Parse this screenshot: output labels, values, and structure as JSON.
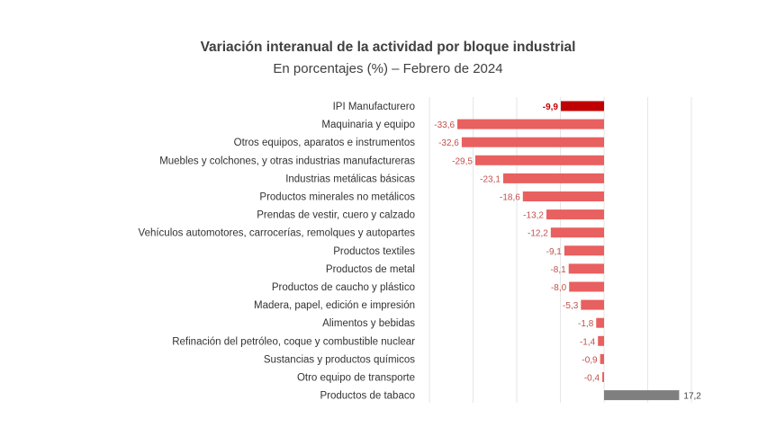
{
  "chart_data": {
    "type": "bar",
    "orientation": "horizontal",
    "title": "Variación interanual de la actividad por bloque industrial",
    "subtitle": "En porcentajes (%) – Febrero de 2024",
    "xlim": [
      -40,
      20
    ],
    "grid": true,
    "categories": [
      "IPI Manufacturero",
      "Maquinaria y equipo",
      "Otros equipos, aparatos e instrumentos",
      "Muebles y colchones, y otras industrias manufactureras",
      "Industrias metálicas básicas",
      "Productos minerales no metálicos",
      "Prendas de vestir, cuero y calzado",
      "Vehículos automotores, carrocerías, remolques y autopartes",
      "Productos textiles",
      "Productos de metal",
      "Productos de caucho y plástico",
      "Madera, papel, edición e impresión",
      "Alimentos y bebidas",
      "Refinación del petróleo, coque y combustible nuclear",
      "Sustancias y productos químicos",
      "Otro equipo de transporte",
      "Productos de tabaco"
    ],
    "values": [
      -9.9,
      -33.6,
      -32.6,
      -29.5,
      -23.1,
      -18.6,
      -13.2,
      -12.2,
      -9.1,
      -8.1,
      -8.0,
      -5.3,
      -1.8,
      -1.4,
      -0.9,
      -0.4,
      17.2
    ],
    "labels": [
      "-9,9",
      "-33,6",
      "-32,6",
      "-29,5",
      "-23,1",
      "-18,6",
      "-13,2",
      "-12,2",
      "-9,1",
      "-8,1",
      "-8,0",
      "-5,3",
      "-1,8",
      "-1,4",
      "-0,9",
      "-0,4",
      "17,2"
    ],
    "colors": {
      "total": "#c00000",
      "negative": "#e8605f",
      "positive": "#7f7f7f",
      "label_total": "#c00000",
      "label_negative": "#c0504d",
      "label_positive": "#404040",
      "grid": "#e6e6e6"
    }
  }
}
